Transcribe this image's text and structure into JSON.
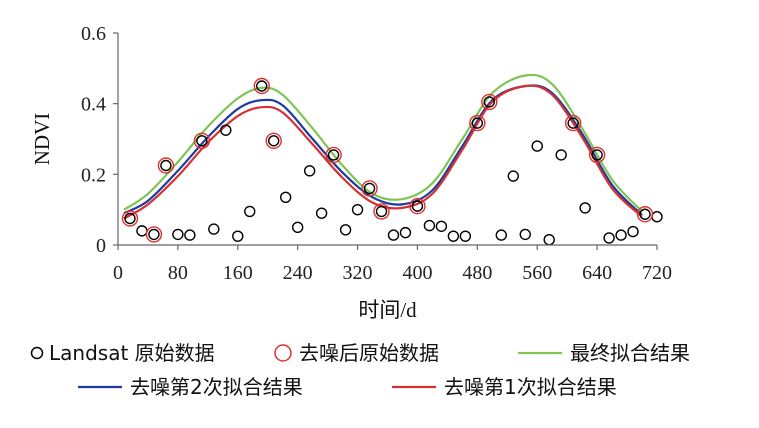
{
  "chart_data": {
    "type": "scatter",
    "xlabel": "时间/d",
    "ylabel": "NDVI",
    "xlim": [
      0,
      720
    ],
    "ylim": [
      0,
      0.6
    ],
    "xticks": [
      0,
      80,
      160,
      240,
      320,
      400,
      480,
      560,
      640,
      720
    ],
    "yticks": [
      0,
      0.2,
      0.4,
      0.6
    ],
    "ytick_labels": [
      "0",
      "0.2",
      "0.4",
      "0.6"
    ],
    "grid": false,
    "legend_position": "bottom",
    "series": [
      {
        "name": "Landsat 原始数据",
        "kind": "points",
        "marker": "circle-open",
        "color": "#000000",
        "x": [
          16,
          32,
          48,
          64,
          80,
          96,
          112,
          128,
          144,
          160,
          176,
          192,
          208,
          224,
          240,
          256,
          272,
          288,
          304,
          320,
          336,
          352,
          368,
          384,
          400,
          416,
          432,
          448,
          464,
          480,
          496,
          512,
          528,
          544,
          560,
          576,
          592,
          608,
          624,
          640,
          656,
          672,
          688,
          704,
          720
        ],
        "y": [
          0.075,
          0.04,
          0.03,
          0.225,
          0.03,
          0.028,
          0.295,
          0.045,
          0.325,
          0.025,
          0.095,
          0.45,
          0.295,
          0.135,
          0.05,
          0.21,
          0.09,
          0.255,
          0.043,
          0.1,
          0.16,
          0.095,
          0.028,
          0.035,
          0.11,
          0.055,
          0.053,
          0.025,
          0.025,
          0.345,
          0.405,
          0.028,
          0.195,
          0.03,
          0.28,
          0.015,
          0.255,
          0.345,
          0.105,
          0.255,
          0.02,
          0.028,
          0.038,
          0.087,
          0.08
        ]
      },
      {
        "name": "去噪后原始数据",
        "kind": "points",
        "marker": "circle-open",
        "color": "#e03030",
        "x": [
          16,
          48,
          64,
          112,
          192,
          208,
          288,
          336,
          352,
          400,
          480,
          496,
          608,
          640,
          704
        ],
        "y": [
          0.075,
          0.03,
          0.225,
          0.295,
          0.45,
          0.295,
          0.255,
          0.16,
          0.095,
          0.11,
          0.345,
          0.405,
          0.345,
          0.255,
          0.087
        ]
      },
      {
        "name": "最终拟合结果",
        "kind": "line",
        "color": "#7fc454",
        "x": [
          8,
          40,
          80,
          120,
          160,
          192,
          220,
          260,
          300,
          340,
          380,
          420,
          460,
          500,
          545,
          580,
          620,
          660,
          700
        ],
        "y": [
          0.1,
          0.145,
          0.235,
          0.335,
          0.415,
          0.445,
          0.425,
          0.33,
          0.225,
          0.145,
          0.13,
          0.175,
          0.3,
          0.43,
          0.48,
          0.455,
          0.33,
          0.185,
          0.095
        ]
      },
      {
        "name": "去噪第2次拟合结果",
        "kind": "line",
        "color": "#1f3b9e",
        "x": [
          8,
          40,
          80,
          120,
          160,
          192,
          220,
          260,
          300,
          340,
          380,
          420,
          460,
          500,
          545,
          580,
          620,
          660,
          700
        ],
        "y": [
          0.09,
          0.125,
          0.21,
          0.305,
          0.385,
          0.41,
          0.395,
          0.3,
          0.205,
          0.135,
          0.115,
          0.155,
          0.28,
          0.41,
          0.45,
          0.43,
          0.315,
          0.17,
          0.085
        ]
      },
      {
        "name": "去噪第1次拟合结果",
        "kind": "line",
        "color": "#d63030",
        "x": [
          8,
          40,
          80,
          120,
          160,
          192,
          220,
          260,
          300,
          340,
          380,
          420,
          460,
          500,
          545,
          580,
          620,
          660,
          700
        ],
        "y": [
          0.075,
          0.115,
          0.195,
          0.29,
          0.365,
          0.39,
          0.375,
          0.285,
          0.19,
          0.12,
          0.105,
          0.145,
          0.27,
          0.405,
          0.45,
          0.425,
          0.305,
          0.16,
          0.08
        ]
      }
    ]
  }
}
